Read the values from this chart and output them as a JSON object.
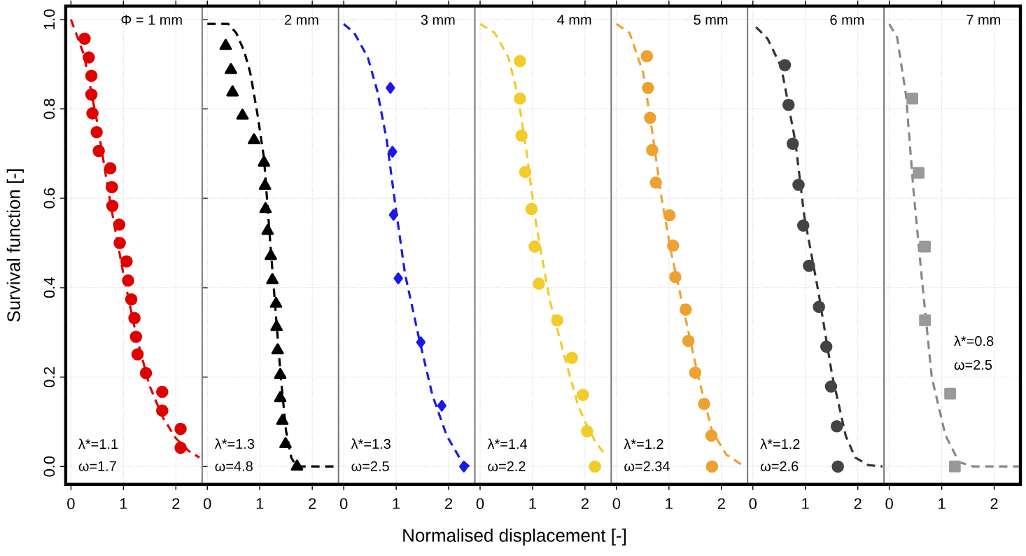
{
  "chart_data": [
    {
      "type": "scatter",
      "ylabel": "Survival function [-]",
      "xlim": [
        -0.1,
        2.5
      ],
      "ylim": [
        -0.04,
        1.03
      ],
      "xticks": [
        0,
        1,
        2
      ],
      "yticks": [
        {
          "value": 0,
          "label": "0.0"
        },
        0.2,
        0.4,
        0.6,
        0.8,
        {
          "value": 1,
          "label": "1.0"
        }
      ],
      "grid": true,
      "annotations": [
        "Φ = 1 mm",
        "λ*=1.1",
        "ω=1.7"
      ],
      "series": [
        {
          "marker": "circle",
          "color": "#e00000",
          "x": [
            0.26,
            0.34,
            0.39,
            0.39,
            0.41,
            0.49,
            0.53,
            0.75,
            0.78,
            0.79,
            0.92,
            0.93,
            1.06,
            1.09,
            1.15,
            1.21,
            1.24,
            1.27,
            1.43,
            1.74,
            1.74,
            2.09,
            2.09
          ],
          "values": [
            0.957,
            0.915,
            0.874,
            0.832,
            0.79,
            0.748,
            0.706,
            0.667,
            0.625,
            0.583,
            0.541,
            0.5,
            0.459,
            0.416,
            0.374,
            0.332,
            0.29,
            0.251,
            0.209,
            0.167,
            0.125,
            0.084,
            0.042
          ]
        },
        {
          "type": "line",
          "line_style": "dashed",
          "color": "#e00000",
          "x": [
            0,
            0.25,
            0.5,
            0.75,
            1.0,
            1.25,
            1.5,
            1.75,
            2.0,
            2.25,
            2.45
          ],
          "values": [
            1.0,
            0.92,
            0.77,
            0.59,
            0.43,
            0.29,
            0.18,
            0.11,
            0.063,
            0.034,
            0.02
          ]
        }
      ]
    },
    {
      "type": "scatter",
      "tick_labels": "x",
      "xlim": [
        -0.1,
        2.5
      ],
      "ylim": [
        -0.04,
        1.03
      ],
      "xticks": [
        0,
        1,
        2
      ],
      "yticks": [
        0.0,
        0.2,
        0.4,
        0.6,
        0.8,
        1.0
      ],
      "grid": true,
      "annotations": [
        "2 mm",
        "λ*=1.3",
        "ω=4.8"
      ],
      "series": [
        {
          "marker": "triangle",
          "color": "#000000",
          "x": [
            0.35,
            0.45,
            0.48,
            0.67,
            0.89,
            1.08,
            1.1,
            1.11,
            1.15,
            1.21,
            1.24,
            1.31,
            1.32,
            1.34,
            1.39,
            1.39,
            1.43,
            1.49,
            1.71
          ],
          "values": [
            0.941,
            0.887,
            0.837,
            0.785,
            0.73,
            0.68,
            0.628,
            0.576,
            0.527,
            0.471,
            0.417,
            0.364,
            0.312,
            0.26,
            0.205,
            0.153,
            0.102,
            0.05,
            0.0
          ]
        },
        {
          "type": "line",
          "line_style": "dashed",
          "color": "#000000",
          "x": [
            0,
            0.2,
            0.4,
            0.55,
            0.7,
            0.82,
            0.96,
            1.08,
            1.2,
            1.3,
            1.4,
            1.5,
            1.6,
            1.7,
            2.0,
            2.48
          ],
          "values": [
            0.99,
            0.99,
            0.99,
            0.97,
            0.93,
            0.88,
            0.785,
            0.69,
            0.5,
            0.35,
            0.2,
            0.08,
            0.02,
            0.0,
            0.0,
            0.0
          ]
        }
      ]
    },
    {
      "type": "scatter",
      "tick_labels": "x",
      "xlim": [
        -0.1,
        2.5
      ],
      "ylim": [
        -0.04,
        1.03
      ],
      "xticks": [
        0,
        1,
        2
      ],
      "yticks": [
        0.0,
        0.2,
        0.4,
        0.6,
        0.8,
        1.0
      ],
      "grid": true,
      "annotations": [
        "3 mm",
        "λ*=1.3",
        "ω=2.5"
      ],
      "series": [
        {
          "marker": "diamond",
          "color": "#1a1ae6",
          "x": [
            0.89,
            0.93,
            0.95,
            1.04,
            1.47,
            1.87,
            2.29
          ],
          "values": [
            0.847,
            0.704,
            0.563,
            0.421,
            0.278,
            0.136,
            0.0
          ]
        },
        {
          "type": "line",
          "line_style": "dashed",
          "color": "#1a1ae6",
          "x": [
            0,
            0.2,
            0.46,
            0.64,
            0.82,
            0.99,
            1.17,
            1.43,
            1.69,
            1.96,
            2.22,
            2.39
          ],
          "values": [
            0.99,
            0.97,
            0.915,
            0.84,
            0.73,
            0.58,
            0.43,
            0.29,
            0.16,
            0.07,
            0.017,
            0.0
          ]
        }
      ]
    },
    {
      "type": "scatter",
      "tick_labels": "x",
      "xlabel": "Normalised displacement [-]",
      "xlim": [
        -0.1,
        2.5
      ],
      "ylim": [
        -0.04,
        1.03
      ],
      "xticks": [
        0,
        1,
        2
      ],
      "yticks": [
        0.0,
        0.2,
        0.4,
        0.6,
        0.8,
        1.0
      ],
      "grid": true,
      "annotations": [
        "4 mm",
        "λ*=1.4",
        "ω=2.2"
      ],
      "series": [
        {
          "marker": "circle",
          "color": "#f2cc2a",
          "x": [
            0.76,
            0.76,
            0.79,
            0.86,
            0.98,
            1.04,
            1.12,
            1.47,
            1.75,
            1.96,
            2.04,
            2.19
          ],
          "values": [
            0.907,
            0.823,
            0.74,
            0.659,
            0.576,
            0.492,
            0.409,
            0.327,
            0.243,
            0.16,
            0.079,
            0.0
          ]
        },
        {
          "type": "line",
          "line_style": "dashed",
          "color": "#f2cc2a",
          "x": [
            0,
            0.28,
            0.54,
            0.72,
            0.89,
            1.07,
            1.33,
            1.6,
            1.86,
            2.0,
            2.2,
            2.38
          ],
          "values": [
            0.99,
            0.97,
            0.915,
            0.83,
            0.7,
            0.54,
            0.37,
            0.25,
            0.14,
            0.1,
            0.055,
            0.027
          ]
        }
      ]
    },
    {
      "type": "scatter",
      "tick_labels": "x",
      "xlim": [
        -0.1,
        2.5
      ],
      "ylim": [
        -0.04,
        1.03
      ],
      "xticks": [
        0,
        1,
        2
      ],
      "yticks": [
        0.0,
        0.2,
        0.4,
        0.6,
        0.8,
        1.0
      ],
      "grid": true,
      "annotations": [
        "5 mm",
        "λ*=1.2",
        "ω=2.34"
      ],
      "series": [
        {
          "marker": "circle",
          "color": "#eda230",
          "x": [
            0.58,
            0.6,
            0.64,
            0.68,
            0.75,
            1.01,
            1.08,
            1.12,
            1.32,
            1.37,
            1.5,
            1.67,
            1.81,
            1.82
          ],
          "values": [
            0.918,
            0.847,
            0.78,
            0.708,
            0.635,
            0.562,
            0.494,
            0.424,
            0.351,
            0.281,
            0.21,
            0.14,
            0.069,
            0.0
          ]
        },
        {
          "type": "line",
          "line_style": "dashed",
          "color": "#eda230",
          "x": [
            0,
            0.25,
            0.51,
            0.68,
            0.86,
            1.04,
            1.3,
            1.56,
            1.82,
            2.09,
            2.44
          ],
          "values": [
            0.99,
            0.97,
            0.88,
            0.75,
            0.6,
            0.48,
            0.34,
            0.2,
            0.08,
            0.027,
            0.0
          ]
        }
      ]
    },
    {
      "type": "scatter",
      "tick_labels": "x",
      "xlim": [
        -0.1,
        2.5
      ],
      "ylim": [
        -0.04,
        1.03
      ],
      "xticks": [
        0,
        1,
        2
      ],
      "yticks": [
        0.0,
        0.2,
        0.4,
        0.6,
        0.8,
        1.0
      ],
      "grid": true,
      "annotations": [
        "6 mm",
        "λ*=1.2",
        "ω=2.6"
      ],
      "series": [
        {
          "marker": "circle",
          "color": "#444444",
          "x": [
            0.61,
            0.68,
            0.76,
            0.87,
            0.96,
            1.07,
            1.26,
            1.4,
            1.49,
            1.6,
            1.62
          ],
          "values": [
            0.898,
            0.809,
            0.722,
            0.63,
            0.539,
            0.449,
            0.357,
            0.268,
            0.179,
            0.09,
            0.0
          ]
        },
        {
          "type": "line",
          "line_style": "dashed",
          "color": "#333333",
          "x": [
            0.06,
            0.28,
            0.54,
            0.81,
            0.98,
            1.25,
            1.51,
            1.77,
            1.95,
            2.2,
            2.47
          ],
          "values": [
            0.983,
            0.957,
            0.894,
            0.727,
            0.56,
            0.39,
            0.205,
            0.069,
            0.02,
            0.003,
            0.0
          ]
        }
      ]
    },
    {
      "type": "scatter",
      "tick_labels": "x",
      "xlim": [
        -0.1,
        2.5
      ],
      "ylim": [
        -0.04,
        1.03
      ],
      "xticks": [
        0,
        1,
        2
      ],
      "yticks": [
        0.0,
        0.2,
        0.4,
        0.6,
        0.8,
        1.0
      ],
      "grid": true,
      "annotations": [
        "7 mm",
        "λ*=0.8",
        "ω=2.5"
      ],
      "series": [
        {
          "marker": "square",
          "color": "#999999",
          "x": [
            0.44,
            0.56,
            0.68,
            0.68,
            1.16,
            1.25
          ],
          "values": [
            0.823,
            0.657,
            0.492,
            0.327,
            0.163,
            0.0
          ]
        },
        {
          "type": "line",
          "line_style": "dashed",
          "color": "#888888",
          "x": [
            0,
            0.15,
            0.32,
            0.46,
            0.63,
            0.81,
            1.07,
            1.33,
            1.6,
            2.47
          ],
          "values": [
            0.99,
            0.96,
            0.83,
            0.62,
            0.41,
            0.2,
            0.07,
            0.01,
            0.0,
            0.0
          ]
        }
      ]
    }
  ]
}
